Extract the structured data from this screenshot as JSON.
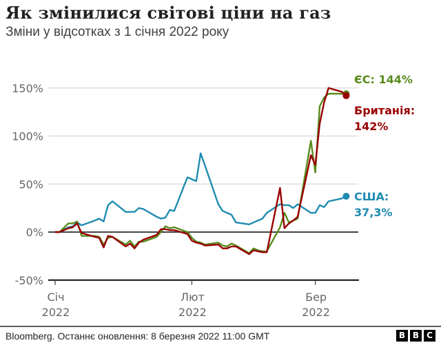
{
  "header": {
    "title": "Як змінилися світові ціни на газ",
    "subtitle": "Зміни у відсотках з 1 січня 2022 року"
  },
  "footer": {
    "source": "Bloomberg. Останнє оновлення: 8 березня 2022 11:00 GMT",
    "logo": [
      "B",
      "B",
      "C"
    ]
  },
  "colors": {
    "eu": "#588a1d",
    "uk": "#990000",
    "us": "#1f8bb0",
    "grid": "#d9d9d9",
    "axis": "#333333"
  },
  "chart_data": {
    "type": "line",
    "title": "Як змінилися світові ціни на газ",
    "subtitle": "Зміни у відсотках з 1 січня 2022 року",
    "xlabel": "",
    "ylabel": "",
    "ylim": [
      -50,
      150
    ],
    "yticks": [
      "150%",
      "100%",
      "50%",
      "0%",
      "-50%"
    ],
    "ytick_values": [
      150,
      100,
      50,
      0,
      -50
    ],
    "xticks": [
      {
        "month": "Січ",
        "year": "2022"
      },
      {
        "month": "Лют",
        "year": "2022"
      },
      {
        "month": "Бер",
        "year": "2022"
      }
    ],
    "grid": true,
    "legend_position": "inline-right",
    "x_days": [
      2,
      4,
      5,
      6,
      7,
      10,
      11,
      12,
      13,
      14,
      17,
      18,
      19,
      20,
      21,
      24,
      25,
      26,
      27,
      28,
      31,
      32,
      33,
      34,
      35,
      38,
      39,
      40,
      41,
      42,
      45,
      46,
      47,
      48,
      49,
      52,
      53,
      54,
      55,
      56,
      59,
      60,
      61,
      62,
      63,
      66,
      67
    ],
    "series": [
      {
        "name": "ЄС",
        "label": "ЄС: 144%",
        "end_value": 144,
        "values": [
          0,
          9,
          9,
          11,
          -4,
          -4,
          -5,
          -13,
          -6,
          -5,
          -13,
          -9,
          -15,
          -10,
          -10,
          -5,
          0,
          6,
          4,
          5,
          0,
          -6,
          -10,
          -11,
          -13,
          -11,
          -14,
          -15,
          -12,
          -14,
          -22,
          -17,
          -19,
          -20,
          -20,
          5,
          20,
          10,
          12,
          14,
          95,
          62,
          131,
          140,
          144,
          144,
          144
        ]
      },
      {
        "name": "Британія",
        "label_line1": "Британія:",
        "label_line2": "142%",
        "end_value": 142,
        "values": [
          0,
          4,
          5,
          9,
          -1,
          -5,
          -6,
          -16,
          -4,
          -5,
          -15,
          -12,
          -17,
          -11,
          -8,
          -3,
          3,
          3,
          2,
          2,
          -2,
          -9,
          -11,
          -12,
          -14,
          -13,
          -17,
          -17,
          -15,
          -15,
          -23,
          -19,
          -20,
          -21,
          -21,
          46,
          4,
          9,
          12,
          16,
          80,
          70,
          113,
          135,
          150,
          146,
          142
        ]
      },
      {
        "name": "США",
        "label_line1": "США:",
        "label_line2": "37,3%",
        "end_value": 37.3,
        "values": [
          0,
          5,
          6,
          10,
          7,
          12,
          14,
          11,
          28,
          32,
          21,
          21,
          21,
          25,
          24,
          16,
          14,
          15,
          23,
          22,
          57,
          55,
          53,
          82,
          69,
          29,
          22,
          20,
          18,
          10,
          8,
          10,
          12,
          14,
          20,
          29,
          28,
          28,
          25,
          29,
          20,
          20,
          28,
          26,
          32,
          35,
          37.3
        ]
      }
    ]
  }
}
